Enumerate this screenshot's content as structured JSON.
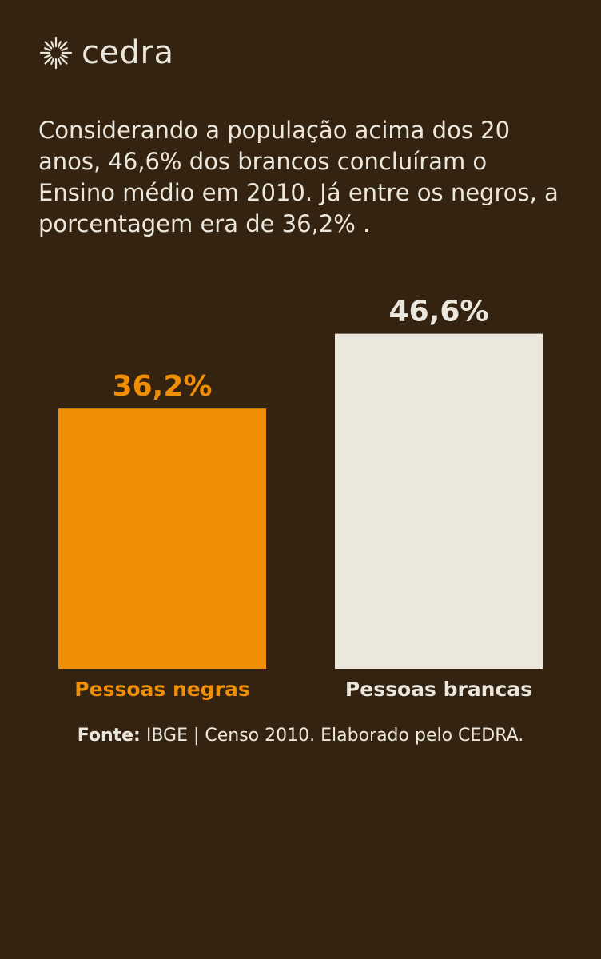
{
  "brand": {
    "name": "cedra"
  },
  "intro_text": "Considerando a população acima dos 20 anos, 46,6% dos brancos concluíram o Ensino médio em 2010. Já entre os negros, a porcentagem era de 36,2% .",
  "chart_data": {
    "type": "bar",
    "categories": [
      "Pessoas negras",
      "Pessoas brancas"
    ],
    "values": [
      36.2,
      46.6
    ],
    "value_labels": [
      "36,2%",
      "46,6%"
    ],
    "colors": [
      "#f08f05",
      "#ebe7dc"
    ],
    "title": "",
    "xlabel": "",
    "ylabel": "",
    "grid": false
  },
  "footer": {
    "label": "Fonte:",
    "text": "IBGE | Censo 2010. Elaborado pelo CEDRA."
  },
  "colors": {
    "background": "#352311",
    "text": "#ebe7dc",
    "accent": "#f08f05"
  }
}
